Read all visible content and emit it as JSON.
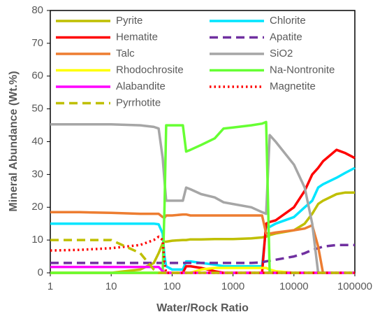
{
  "chart_data": {
    "type": "line",
    "xscale": "log",
    "x_label": "Water/Rock Ratio",
    "y_label": "Mineral Abundance (Wt.%)",
    "x": [
      1,
      3,
      10,
      30,
      50,
      60,
      70,
      75,
      80,
      100,
      150,
      170,
      200,
      300,
      500,
      700,
      1000,
      2000,
      3000,
      3500,
      4000,
      5000,
      10000,
      15000,
      20000,
      25000,
      30000,
      50000,
      70000,
      100000
    ],
    "xlim": [
      1,
      100000
    ],
    "xticks": [
      1,
      10,
      100,
      1000,
      10000,
      100000
    ],
    "ylim": [
      0,
      80
    ],
    "yticks": [
      0,
      10,
      20,
      30,
      40,
      50,
      60,
      70,
      80
    ],
    "series": [
      {
        "name": "Pyrite",
        "color": "#bfbf00",
        "dash": "solid",
        "values": [
          0,
          0,
          0,
          1,
          3,
          6,
          9,
          9.5,
          9.5,
          9.8,
          10,
          10,
          10.2,
          10.2,
          10.3,
          10.3,
          10.3,
          10.5,
          10.8,
          11,
          11.5,
          12,
          13,
          15,
          18,
          21,
          22,
          24,
          24.5,
          24.5
        ]
      },
      {
        "name": "Chlorite",
        "color": "#00e5ff",
        "dash": "solid",
        "values": [
          15,
          15,
          15,
          15,
          15,
          14.8,
          12,
          5,
          2,
          1,
          1,
          3.5,
          3.5,
          3,
          2.5,
          2,
          2,
          2,
          2,
          14,
          14,
          15,
          17,
          20,
          22,
          26,
          27,
          29,
          30.5,
          32
        ]
      },
      {
        "name": "Hematite",
        "color": "#ff0000",
        "dash": "solid",
        "values": [
          0,
          0,
          0,
          0,
          0,
          0,
          0,
          0,
          0,
          0,
          0,
          2,
          2,
          1.5,
          0.5,
          0,
          0,
          0,
          0,
          15,
          15.5,
          16,
          20,
          25,
          30,
          32,
          34,
          37.5,
          36.5,
          35
        ]
      },
      {
        "name": "Apatite",
        "color": "#7030a0",
        "dash": "dashed",
        "values": [
          3,
          3,
          3,
          3,
          3,
          3,
          3,
          3,
          3,
          3,
          3,
          3,
          3,
          3,
          3,
          3,
          3,
          3,
          3.2,
          3.5,
          3.7,
          4,
          5,
          6,
          7,
          7.5,
          8,
          8.5,
          8.5,
          8.5
        ]
      },
      {
        "name": "Talc",
        "color": "#ed7d31",
        "dash": "solid",
        "values": [
          18.5,
          18.5,
          18.3,
          18,
          18,
          18,
          17,
          16.8,
          17.5,
          17.5,
          17.8,
          17.8,
          17.5,
          17.5,
          17.5,
          17.5,
          17.5,
          17.5,
          17.5,
          12,
          12,
          12.3,
          13,
          13.5,
          14.5,
          8,
          0,
          0,
          0,
          0
        ]
      },
      {
        "name": "SiO2",
        "color": "#a6a6a6",
        "dash": "solid",
        "values": [
          45.3,
          45.3,
          45.3,
          45,
          44.5,
          44,
          35,
          28,
          22,
          22,
          22,
          26,
          25.5,
          24,
          23,
          21.5,
          21,
          20,
          18.5,
          18,
          42,
          40,
          33,
          26,
          15,
          0,
          0,
          0,
          0,
          0
        ]
      },
      {
        "name": "Rhodochrosite",
        "color": "#ffff00",
        "dash": "solid",
        "values": [
          0,
          0,
          0,
          0,
          0,
          0,
          0,
          0,
          0,
          0,
          0,
          0,
          0,
          1,
          1.5,
          1.5,
          1.5,
          1.5,
          1.5,
          1.5,
          1,
          0.5,
          0,
          0,
          0,
          0,
          0,
          0,
          0,
          0
        ]
      },
      {
        "name": "Na-Nontronite",
        "color": "#66ff33",
        "dash": "solid",
        "values": [
          0,
          0,
          0,
          0,
          0,
          0,
          0,
          20,
          45,
          45,
          45,
          37,
          37.5,
          39,
          41,
          44,
          44.3,
          45,
          45.5,
          46,
          0,
          0,
          0,
          0,
          0,
          0,
          0,
          0,
          0,
          0
        ]
      },
      {
        "name": "Alabandite",
        "color": "#ff00ff",
        "dash": "solid",
        "values": [
          1.8,
          1.8,
          1.8,
          1.8,
          1.8,
          1.8,
          0.5,
          0,
          0,
          0,
          0,
          0,
          0,
          0,
          0,
          0,
          0,
          0,
          0,
          0,
          0,
          0,
          0,
          0,
          0,
          0,
          0,
          0,
          0,
          0
        ]
      },
      {
        "name": "Magnetite",
        "color": "#ff0000",
        "dash": "dotted",
        "values": [
          6.8,
          7,
          7.5,
          8.5,
          10,
          11,
          10,
          3,
          0,
          0,
          0,
          0,
          0,
          0,
          0,
          0,
          0,
          0,
          0,
          0,
          0,
          0,
          0,
          0,
          0,
          0,
          0,
          0,
          0,
          0
        ]
      },
      {
        "name": "Pyrrhotite",
        "color": "#bfbf00",
        "dash": "dashed",
        "values": [
          10,
          10,
          10,
          6,
          1,
          0,
          0,
          0,
          0,
          0,
          0,
          0,
          0,
          0,
          0,
          0,
          0,
          0,
          0,
          0,
          0,
          0,
          0,
          0,
          0,
          0,
          0,
          0,
          0,
          0
        ]
      }
    ]
  }
}
